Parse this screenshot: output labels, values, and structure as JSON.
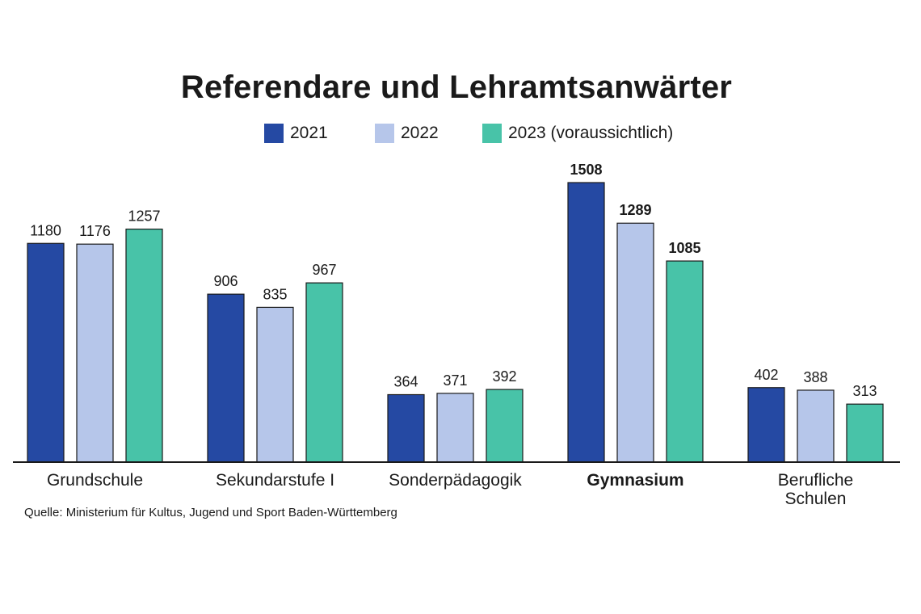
{
  "chart_data": {
    "type": "bar",
    "title": "Referendare und Lehramtsanwärter",
    "categories": [
      {
        "lines": [
          "Grundschule"
        ],
        "bold": false
      },
      {
        "lines": [
          "Sekundarstufe I"
        ],
        "bold": false
      },
      {
        "lines": [
          "Sonderpädagogik"
        ],
        "bold": false
      },
      {
        "lines": [
          "Gymnasium"
        ],
        "bold": true
      },
      {
        "lines": [
          "Berufliche",
          "Schulen"
        ],
        "bold": false
      }
    ],
    "series": [
      {
        "name": "2021",
        "color": "#2549a3",
        "values": [
          1180,
          906,
          364,
          1508,
          402
        ]
      },
      {
        "name": "2022",
        "color": "#b6c6ea",
        "values": [
          1176,
          835,
          371,
          1289,
          388
        ]
      },
      {
        "name": "2023 (voraussichtlich)",
        "color": "#48c3a8",
        "values": [
          1257,
          967,
          392,
          1085,
          313
        ]
      }
    ],
    "value_labels_bold_category": "Gymnasium",
    "ylim": [
      0,
      1508
    ],
    "legend_position": "top-center",
    "grid": false
  },
  "source": "Quelle: Ministerium für Kultus, Jugend und Sport Baden-Württemberg"
}
